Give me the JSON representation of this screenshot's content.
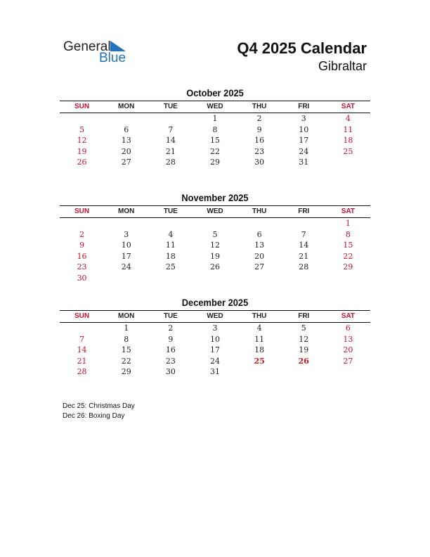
{
  "logo": {
    "text1": "General",
    "text2": "Blue",
    "color": "#1f73c0"
  },
  "title": "Q4 2025 Calendar",
  "country": "Gibraltar",
  "weekdays": [
    "SUN",
    "MON",
    "TUE",
    "WED",
    "THU",
    "FRI",
    "SAT"
  ],
  "colors": {
    "weekend": "#c8102e",
    "holiday": "#d0101e"
  },
  "months": [
    {
      "name": "October 2025",
      "weeks": [
        [
          "",
          "",
          "",
          "1",
          "2",
          "3",
          "4"
        ],
        [
          "5",
          "6",
          "7",
          "8",
          "9",
          "10",
          "11"
        ],
        [
          "12",
          "13",
          "14",
          "15",
          "16",
          "17",
          "18"
        ],
        [
          "19",
          "20",
          "21",
          "22",
          "23",
          "24",
          "25"
        ],
        [
          "26",
          "27",
          "28",
          "29",
          "30",
          "31",
          ""
        ]
      ],
      "holidays": []
    },
    {
      "name": "November 2025",
      "weeks": [
        [
          "",
          "",
          "",
          "",
          "",
          "",
          "1"
        ],
        [
          "2",
          "3",
          "4",
          "5",
          "6",
          "7",
          "8"
        ],
        [
          "9",
          "10",
          "11",
          "12",
          "13",
          "14",
          "15"
        ],
        [
          "16",
          "17",
          "18",
          "19",
          "20",
          "21",
          "22"
        ],
        [
          "23",
          "24",
          "25",
          "26",
          "27",
          "28",
          "29"
        ],
        [
          "30",
          "",
          "",
          "",
          "",
          "",
          ""
        ]
      ],
      "holidays": []
    },
    {
      "name": "December 2025",
      "weeks": [
        [
          "",
          "1",
          "2",
          "3",
          "4",
          "5",
          "6"
        ],
        [
          "7",
          "8",
          "9",
          "10",
          "11",
          "12",
          "13"
        ],
        [
          "14",
          "15",
          "16",
          "17",
          "18",
          "19",
          "20"
        ],
        [
          "21",
          "22",
          "23",
          "24",
          "25",
          "26",
          "27"
        ],
        [
          "28",
          "29",
          "30",
          "31",
          "",
          "",
          ""
        ]
      ],
      "holidays": [
        "25",
        "26"
      ]
    }
  ],
  "notes": [
    "Dec 25: Christmas Day",
    "Dec 26: Boxing Day"
  ]
}
